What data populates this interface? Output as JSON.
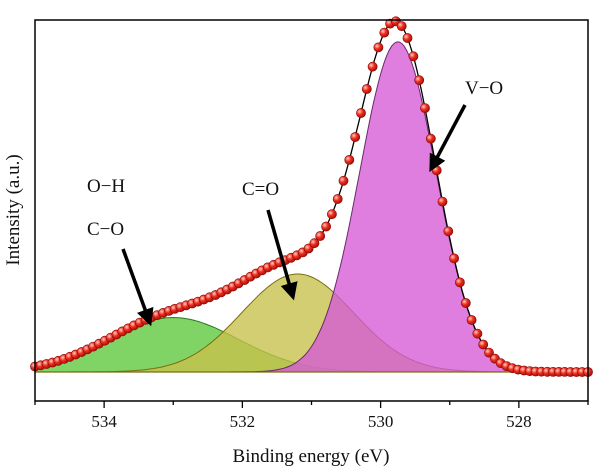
{
  "chart_data": {
    "type": "area",
    "xlabel": "Binding energy (eV)",
    "ylabel": "Intensity (a.u.)",
    "x_reversed": true,
    "xlim": [
      535,
      527
    ],
    "ylim": [
      -5,
      100
    ],
    "xticks": [
      534,
      532,
      530,
      528
    ],
    "y_ticks_shown": false,
    "baseline": 3,
    "series": [
      {
        "role": "raw-data",
        "color": "#e8231d",
        "style": "markers",
        "peak_sum": true
      },
      {
        "role": "fit-envelope",
        "color": "#000000",
        "style": "line"
      },
      {
        "role": "component",
        "center": 529.75,
        "fwhm": 1.3,
        "height": 91,
        "fill": "#d65ad6",
        "edge": "#6a2a6a"
      },
      {
        "role": "component",
        "center": 531.2,
        "fwhm": 1.9,
        "height": 27,
        "fill": "#c8c04a",
        "edge": "#7a6d10"
      },
      {
        "role": "component",
        "center": 533.0,
        "fwhm": 2.2,
        "height": 15,
        "fill": "#5cc83a",
        "edge": "#257a1c"
      }
    ],
    "annotations": [
      {
        "label": "V−O",
        "arrow_to": [
          529.3,
          73
        ]
      },
      {
        "label": "C=O",
        "arrow_to": [
          531.3,
          25
        ]
      },
      {
        "label": "O−H"
      },
      {
        "label": "C−O",
        "arrow_to": [
          532.9,
          15
        ]
      }
    ]
  }
}
